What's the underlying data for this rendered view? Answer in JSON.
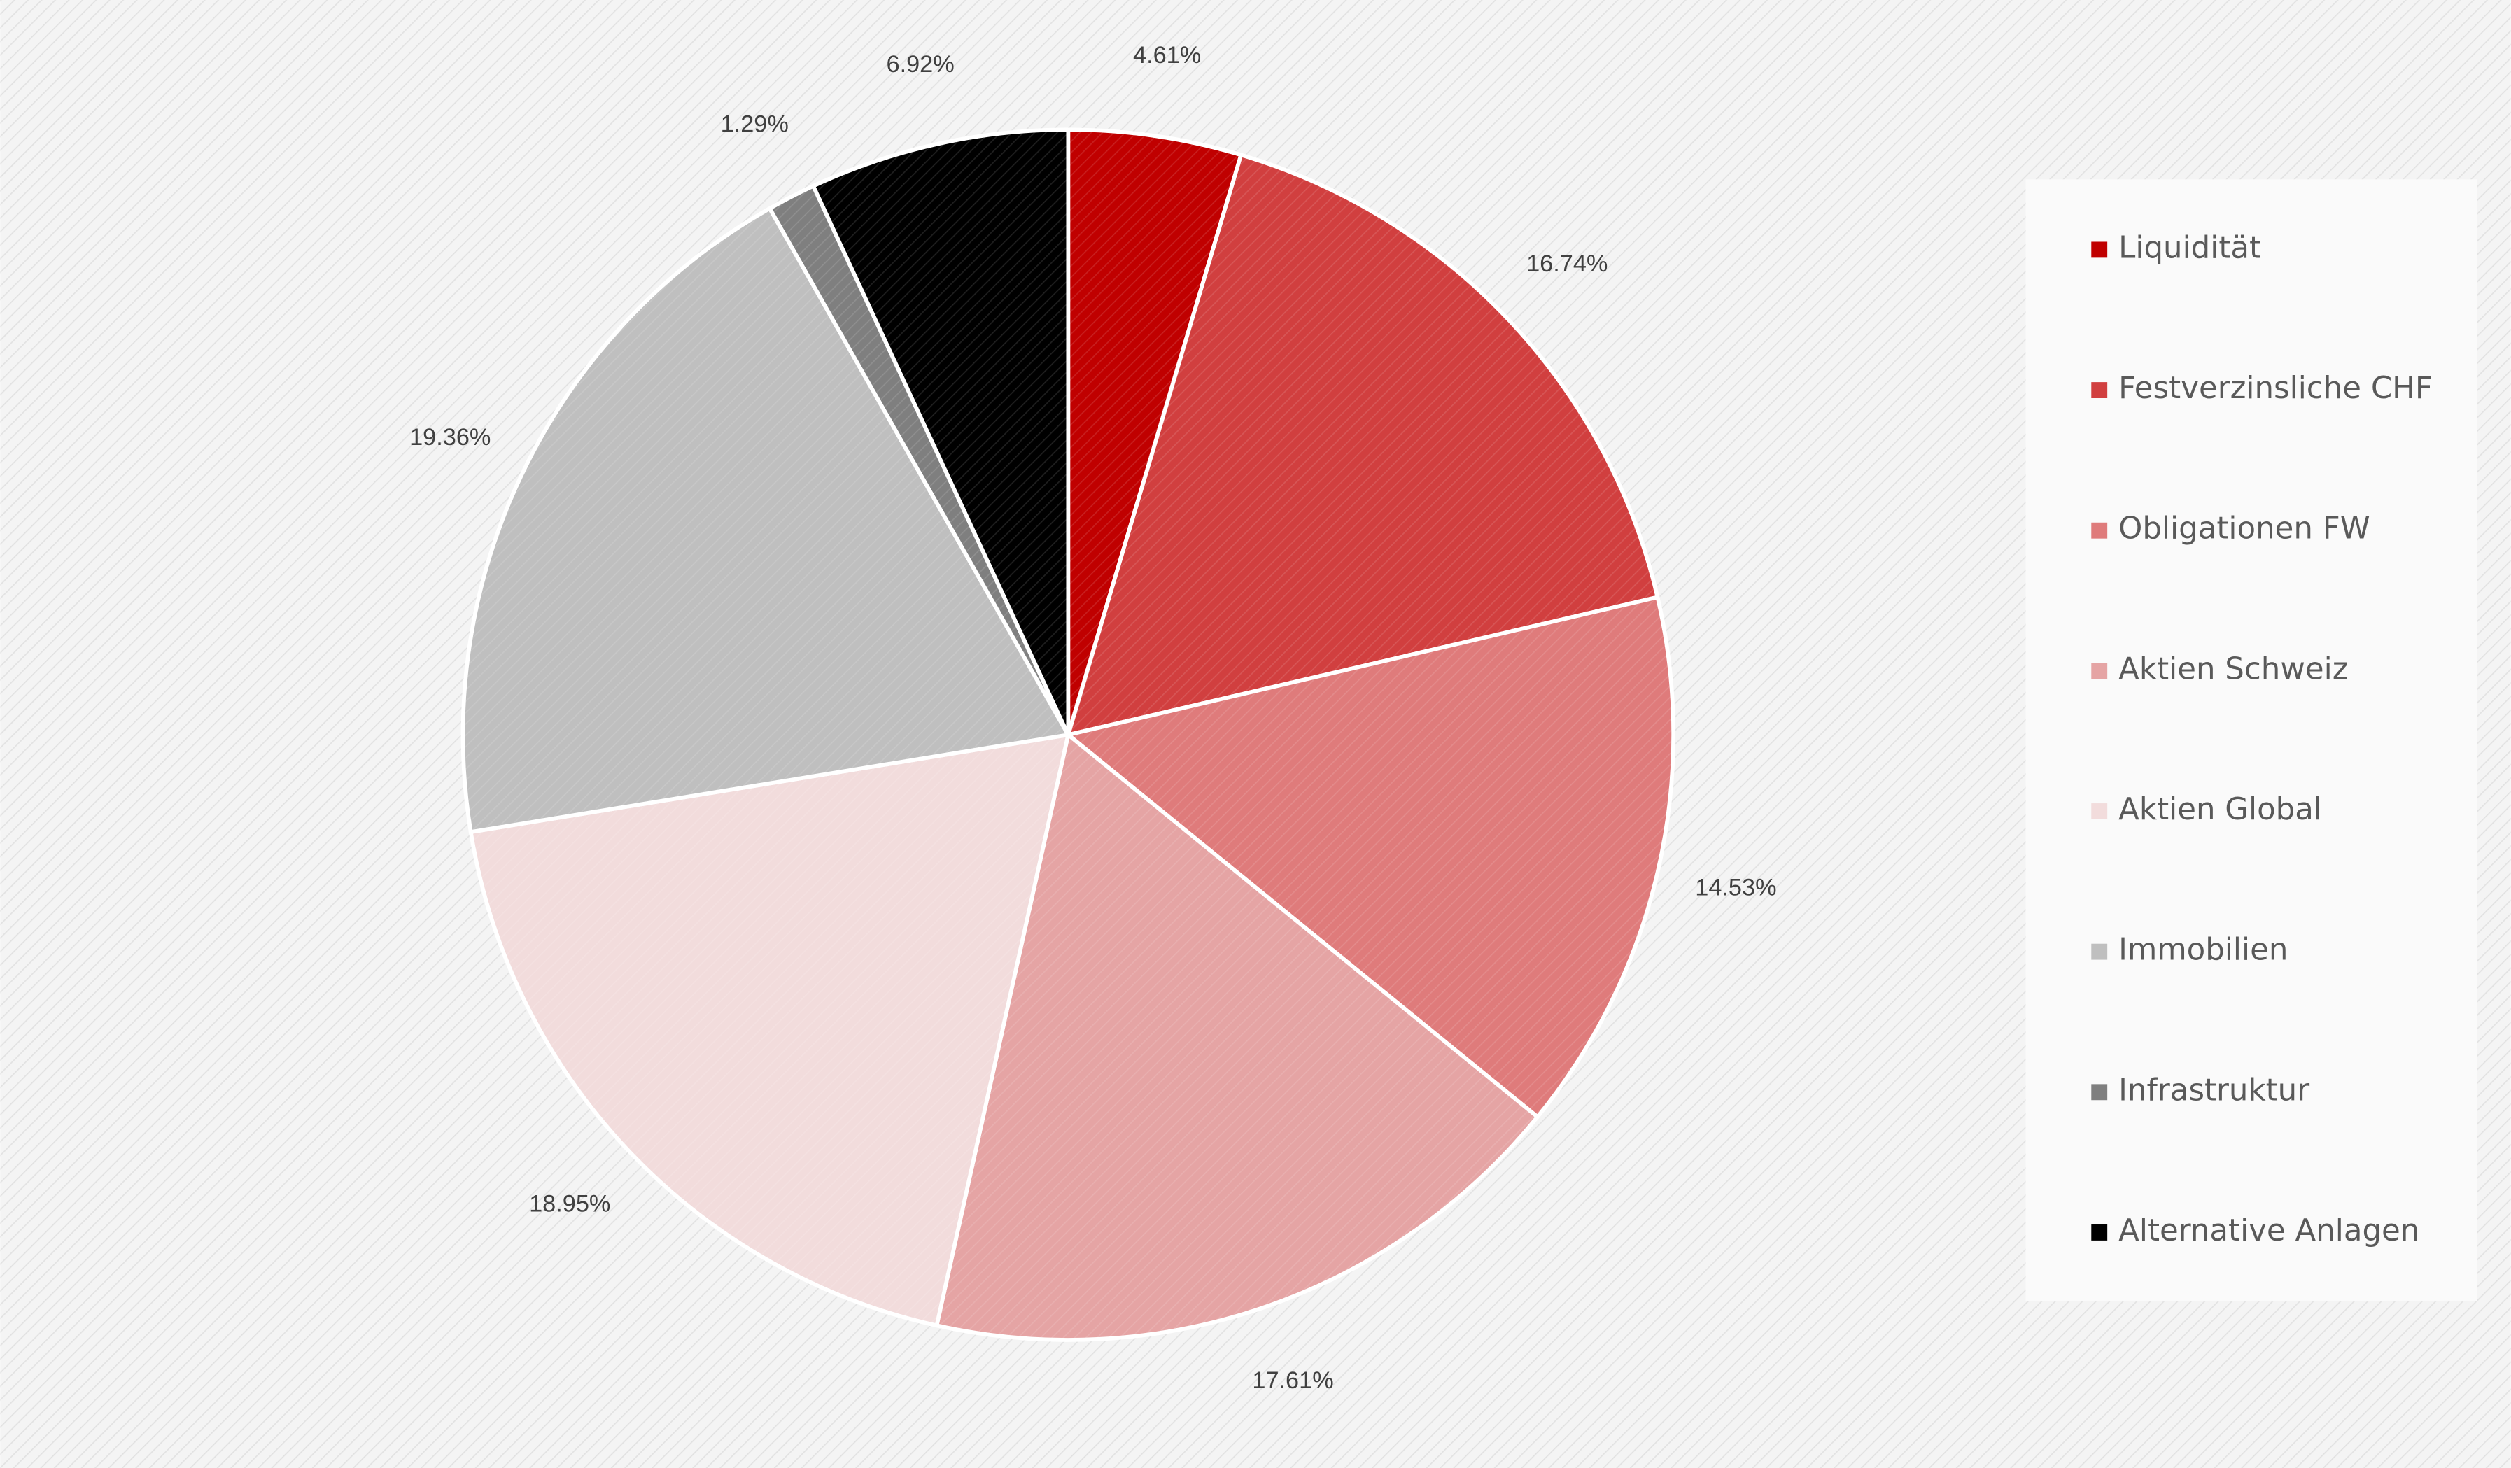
{
  "chart_data": {
    "type": "pie",
    "categories": [
      "Liquidität",
      "Festverzinsliche CHF",
      "Obligationen FW",
      "Aktien Schweiz",
      "Aktien Global",
      "Immobilien",
      "Infrastruktur",
      "Alternative Anlagen"
    ],
    "values": [
      4.61,
      16.74,
      14.53,
      17.61,
      18.95,
      19.36,
      1.29,
      6.92
    ],
    "value_labels": [
      "4.61%",
      "16.74%",
      "14.53%",
      "17.61%",
      "18.95%",
      "19.36%",
      "1.29%",
      "6.92%"
    ],
    "colors": [
      "#c00000",
      "#d13f3f",
      "#df7b7b",
      "#e5a4a4",
      "#f2dcdc",
      "#bfbfbf",
      "#7f7f7f",
      "#000000"
    ],
    "legend": "right"
  }
}
